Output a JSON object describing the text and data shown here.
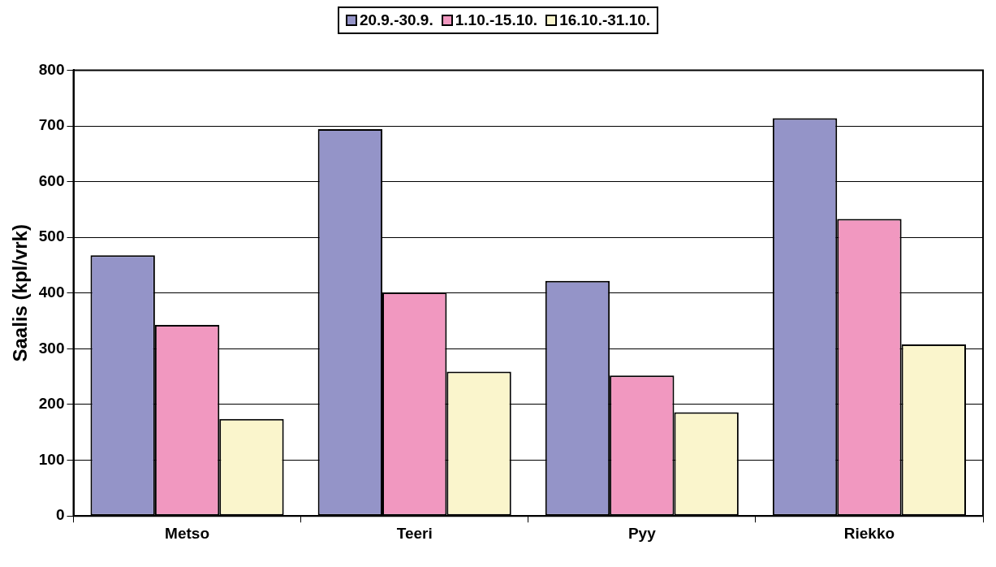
{
  "chart_data": {
    "type": "bar",
    "ylabel": "Saalis (kpl/vrk)",
    "categories": [
      "Metso",
      "Teeri",
      "Pyy",
      "Riekko"
    ],
    "series": [
      {
        "name": "20.9.-30.9.",
        "color": "#9494c8",
        "values": [
          468,
          694,
          422,
          714
        ]
      },
      {
        "name": "1.10.-15.10.",
        "color": "#f198c0",
        "values": [
          343,
          401,
          252,
          533
        ]
      },
      {
        "name": "16.10.-31.10.",
        "color": "#faf5cc",
        "values": [
          174,
          259,
          186,
          308
        ]
      }
    ],
    "ylim": [
      0,
      800
    ],
    "yticks": [
      0,
      100,
      200,
      300,
      400,
      500,
      600,
      700,
      800
    ],
    "grid": "y",
    "legend": "top"
  }
}
